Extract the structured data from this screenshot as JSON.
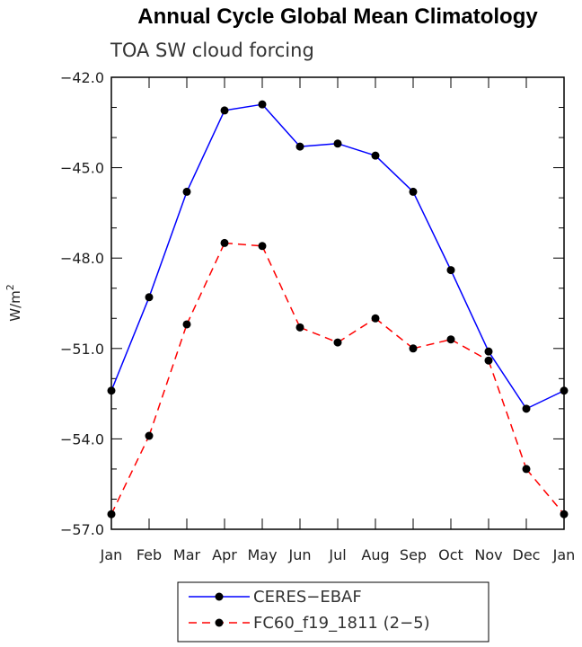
{
  "chart_data": {
    "type": "line",
    "title": "Annual Cycle Global Mean Climatology",
    "subtitle": "TOA SW cloud forcing",
    "ylabel": "W/m",
    "ylabel_sup": "2",
    "xlabel": "",
    "categories": [
      "Jan",
      "Feb",
      "Mar",
      "Apr",
      "May",
      "Jun",
      "Jul",
      "Aug",
      "Sep",
      "Oct",
      "Nov",
      "Dec",
      "Jan"
    ],
    "ylim": [
      -57,
      -42
    ],
    "yticks": [
      -57,
      -54,
      -51,
      -48,
      -45,
      -42
    ],
    "ytick_labels": [
      "−57.0",
      "−54.0",
      "−51.0",
      "−48.0",
      "−45.0",
      "−42.0"
    ],
    "series": [
      {
        "name": "CERES−EBAF",
        "color": "#0000ff",
        "dash": "solid",
        "values": [
          -52.4,
          -49.3,
          -45.8,
          -43.1,
          -42.9,
          -44.3,
          -44.2,
          -44.6,
          -45.8,
          -48.4,
          -51.1,
          -53.0,
          -52.4
        ]
      },
      {
        "name": "FC60_f19_1811 (2−5)",
        "color": "#ff0000",
        "dash": "dashed",
        "values": [
          -56.5,
          -53.9,
          -50.2,
          -47.5,
          -47.6,
          -50.3,
          -50.8,
          -50.0,
          -51.0,
          -50.7,
          -51.4,
          -55.0,
          -56.5
        ]
      }
    ],
    "legend_position": "bottom-center"
  }
}
